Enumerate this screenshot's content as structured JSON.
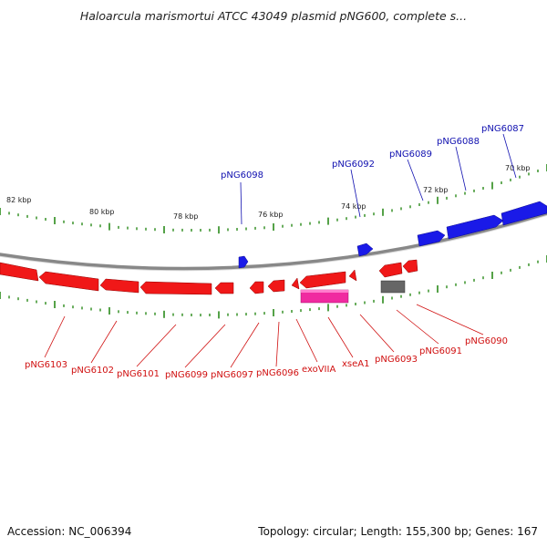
{
  "title": "Haloarcula marismortui ATCC 43049 plasmid pNG600, complete s...",
  "footer": {
    "accession": "Accession: NC_006394",
    "topology": "Topology: circular; Length: 155,300 bp; Genes: 167"
  },
  "colors": {
    "forward_gene": "#1010e0",
    "reverse_gene": "#e01010",
    "rna_gene": "#e0209a",
    "other_gene": "#707070",
    "backbone": "#888888",
    "tick": "#2a8a1a",
    "forward_label": "#1010b0",
    "reverse_label": "#d01010"
  },
  "scale_labels": [
    "82 kbp",
    "80 kbp",
    "78 kbp",
    "76 kbp",
    "74 kbp",
    "72 kbp",
    "70 kbp"
  ],
  "forward_labels": [
    "pNG6098",
    "pNG6092",
    "pNG6089",
    "pNG6088",
    "pNG6087"
  ],
  "reverse_labels": [
    "pNG6103",
    "pNG6102",
    "pNG6101",
    "pNG6099",
    "pNG6097",
    "pNG6096",
    "exoVIIA",
    "xseA1",
    "pNG6093",
    "pNG6091",
    "pNG6090"
  ]
}
